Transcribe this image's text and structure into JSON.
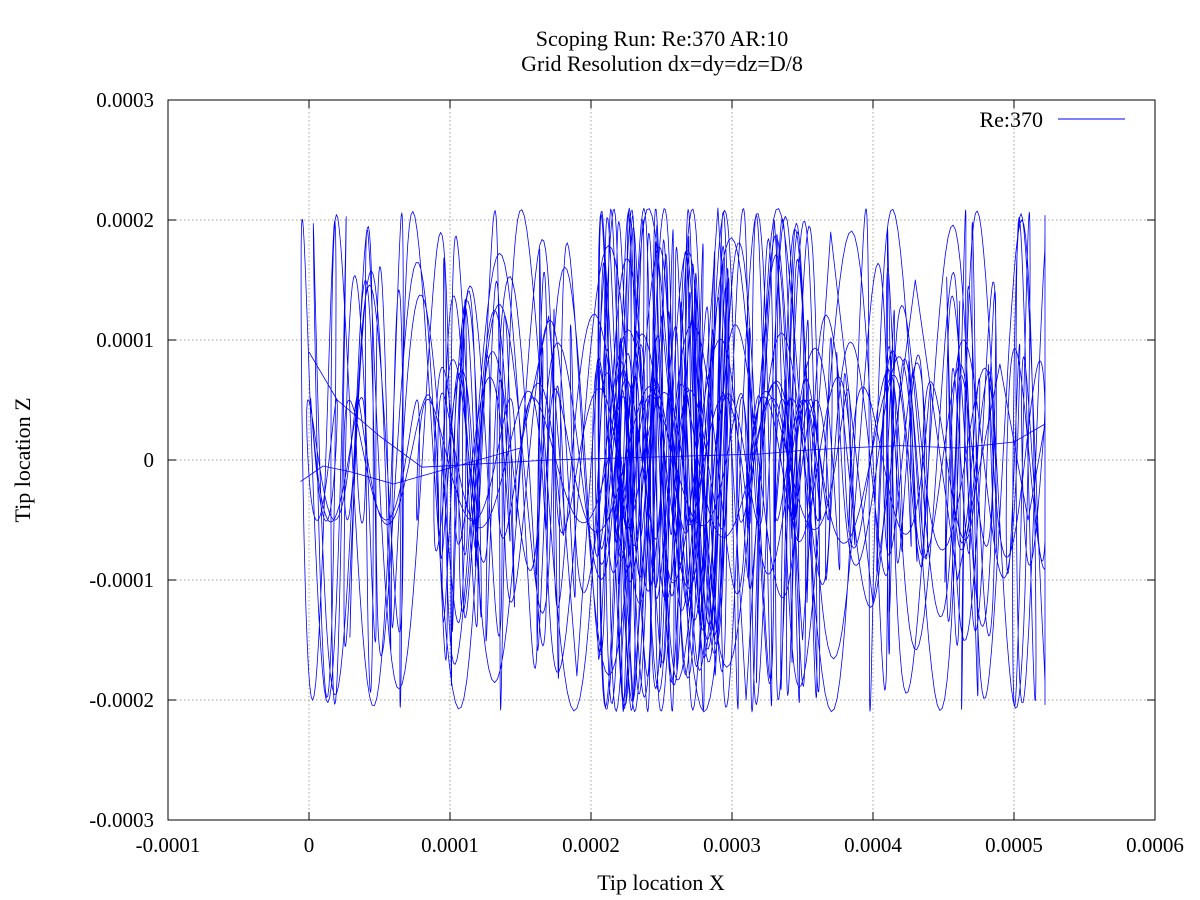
{
  "chart_data": {
    "type": "line",
    "title": "Scoping Run: Re:370  AR:10",
    "subtitle": "Grid Resolution dx=dy=dz=D/8",
    "xlabel": "Tip location X",
    "ylabel": "Tip location Z",
    "xlim": [
      -0.0001,
      0.0006
    ],
    "ylim": [
      -0.0003,
      0.0003
    ],
    "xticks": [
      -0.0001,
      0,
      0.0001,
      0.0002,
      0.0003,
      0.0004,
      0.0005,
      0.0006
    ],
    "xtick_labels": [
      "-0.0001",
      "0",
      "0.0001",
      "0.0002",
      "0.0003",
      "0.0004",
      "0.0005",
      "0.0006"
    ],
    "yticks": [
      -0.0003,
      -0.0002,
      -0.0001,
      0,
      0.0001,
      0.0002,
      0.0003
    ],
    "ytick_labels": [
      "-0.0003",
      "-0.0002",
      "-0.0001",
      "0",
      "0.0001",
      "0.0002",
      "0.0003"
    ],
    "grid": true,
    "legend_position": "top-right",
    "series": [
      {
        "name": "Re:370",
        "color": "#0000ff",
        "x": [
          -6e-06,
          1e-05,
          3e-05,
          6e-05,
          9e-05,
          0.00012,
          0.00015,
          0.00017,
          0.00019,
          0.00021,
          0.00023,
          0.00025,
          0.00027,
          0.00029,
          0.00031,
          0.00033,
          0.00035,
          0.00037,
          0.0004,
          0.00043,
          0.00046,
          0.00049,
          0.00051,
          0.000522,
          0.0005,
          0.00046,
          0.00042,
          0.00038,
          0.00035,
          0.00032,
          0.00029,
          0.00026,
          0.00023,
          0.0002,
          0.00017,
          0.00014,
          0.00011,
          8e-05,
          5e-05,
          2e-05,
          0.0
        ],
        "y": [
          -1.8e-05,
          -5e-06,
          -1e-05,
          -2e-05,
          -1e-05,
          0.0,
          1e-05,
          0.00012,
          -0.00018,
          0.00017,
          -0.0002,
          0.00012,
          -0.00013,
          0.00021,
          -0.0002,
          0.0002,
          -0.00015,
          0.00019,
          -0.00012,
          0.00015,
          -0.0001,
          8e-05,
          -5e-05,
          3e-05,
          1.5e-05,
          1e-05,
          1.2e-05,
          1e-05,
          8e-06,
          5e-06,
          4e-06,
          3e-06,
          2e-06,
          1e-06,
          0.0,
          -2e-06,
          -4e-06,
          -6e-06,
          2e-05,
          5e-05,
          9e-05
        ]
      }
    ]
  }
}
